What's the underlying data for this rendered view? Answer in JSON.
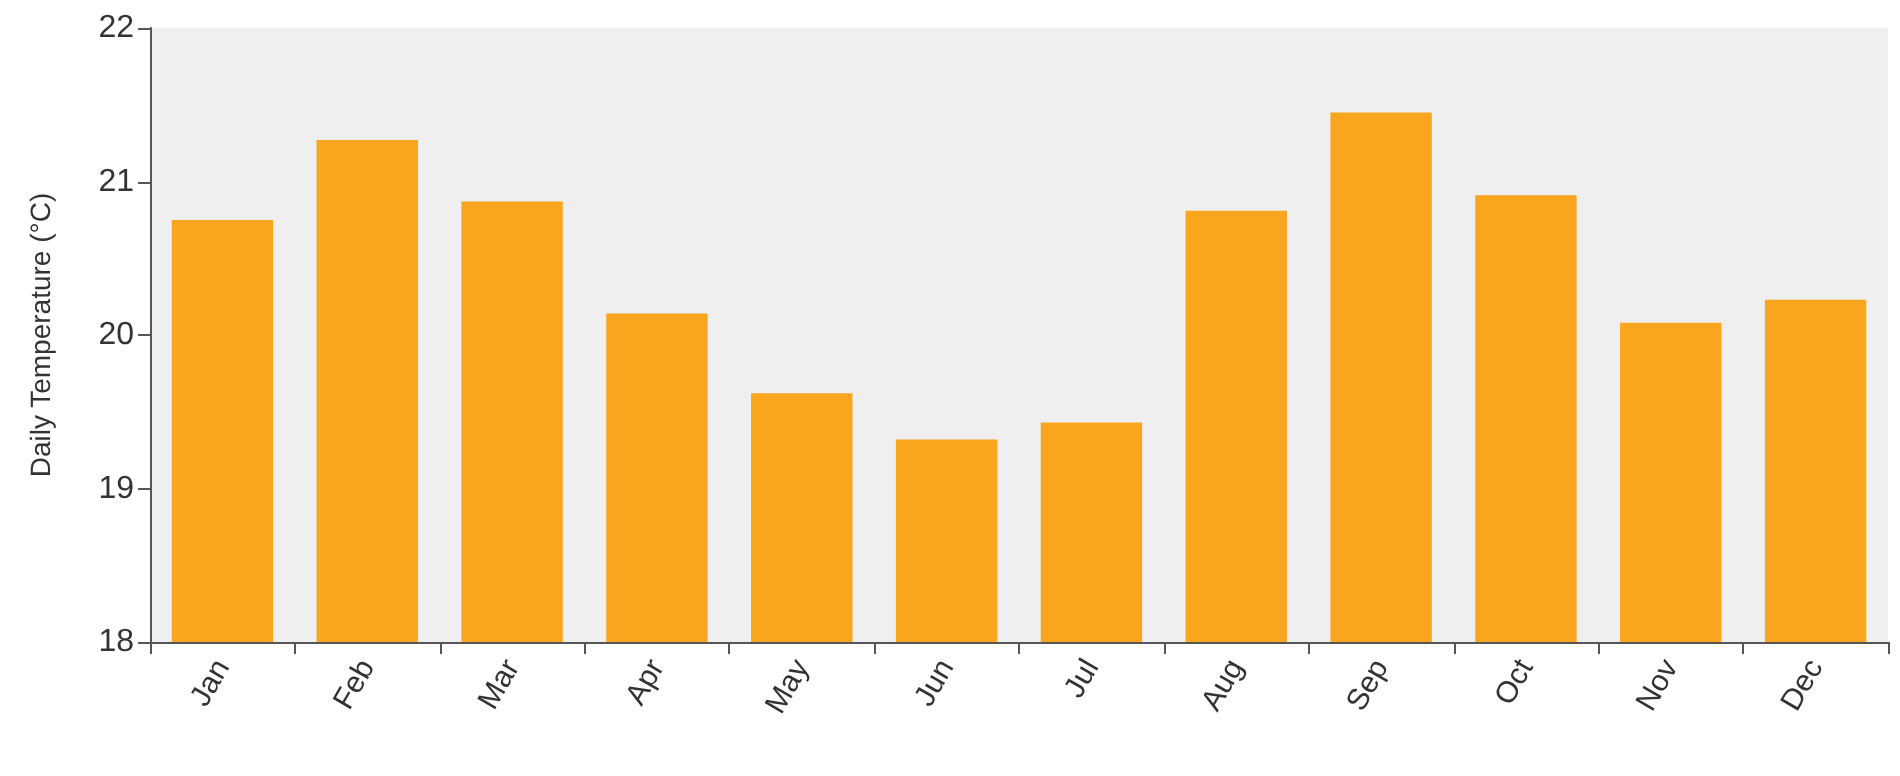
{
  "chart_data": {
    "type": "bar",
    "ylabel": "Daily Temperature (°C)",
    "categories": [
      "Jan",
      "Feb",
      "Mar",
      "Apr",
      "May",
      "Jun",
      "Jul",
      "Aug",
      "Sep",
      "Oct",
      "Nov",
      "Dec"
    ],
    "values": [
      20.75,
      21.27,
      20.87,
      20.14,
      19.62,
      19.32,
      19.43,
      20.81,
      21.45,
      20.91,
      20.08,
      20.23
    ],
    "color": "#f9a51e",
    "ylim": [
      18,
      22
    ],
    "yticks": [
      18,
      19,
      20,
      21,
      22
    ],
    "grid": false
  }
}
